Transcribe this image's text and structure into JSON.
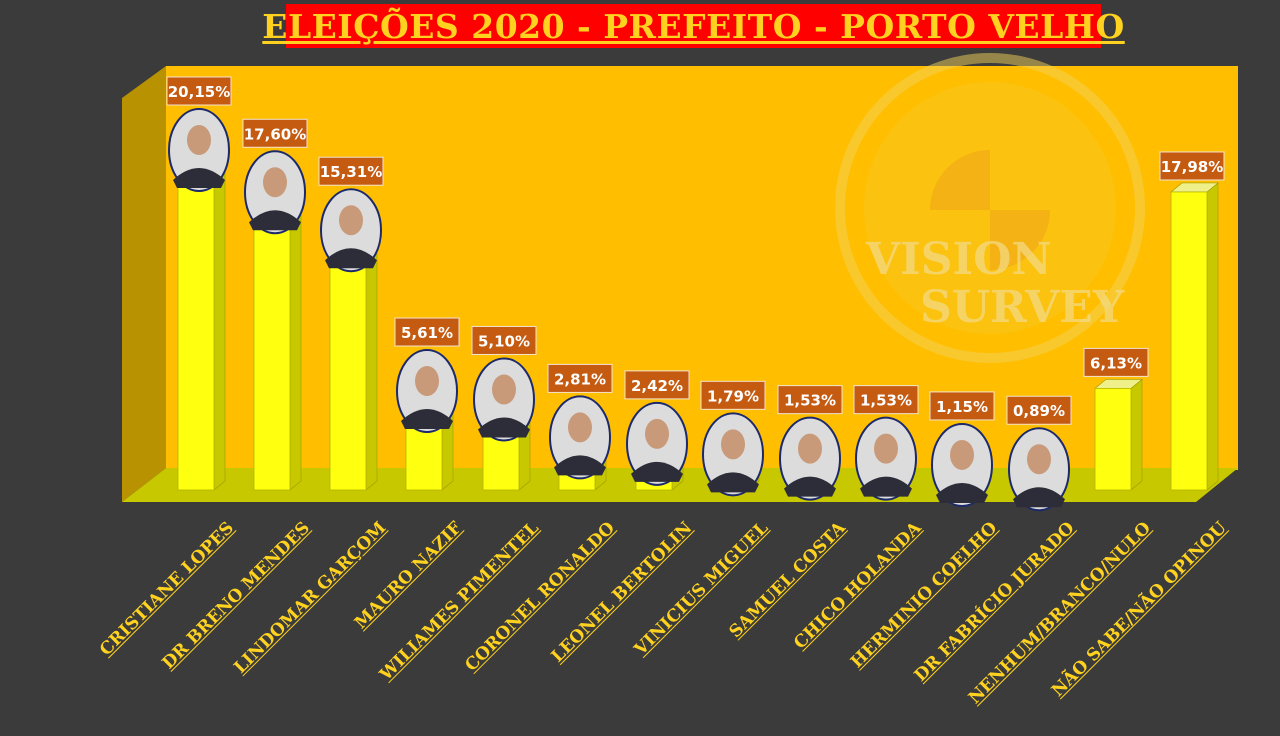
{
  "title": "ELEIÇÕES 2020 - PREFEITO - PORTO VELHO",
  "watermark": {
    "line1": "VISION",
    "line2": "SURVEY"
  },
  "colors": {
    "background": "#3b3b3b",
    "title_box": "#ff0000",
    "title_text": "#ffd21f",
    "wall": "#ffbf00",
    "floor": "#c8c800",
    "bar_front": "#ffff10",
    "bar_side": "#c8c800",
    "label_box": "#c55a11",
    "axis_label": "#ffd21f"
  },
  "chart_data": {
    "type": "bar",
    "title": "ELEIÇÕES 2020 - PREFEITO - PORTO VELHO",
    "unit": "%",
    "ylim": [
      0,
      20.15
    ],
    "categories": [
      "CRISTIANE LOPES",
      "DR BRENO MENDES",
      "LINDOMAR GARÇOM",
      "MAURO NAZIF",
      "WILIAMES PIMENTEL",
      "CORONEL RONALDO",
      "LEONEL BERTOLIN",
      "VINICIUS MIGUEL",
      "SAMUEL COSTA",
      "CHICO HOLANDA",
      "HERMINIO COELHO",
      "DR FABRÍCIO JURADO",
      "NENHUM/BRANCO/NULO",
      "NÃO SABE/NÃO OPINOU"
    ],
    "values": [
      20.15,
      17.6,
      15.31,
      5.61,
      5.1,
      2.81,
      2.42,
      1.79,
      1.53,
      1.53,
      1.15,
      0.89,
      6.13,
      17.98
    ],
    "value_labels": [
      "20,15%",
      "17,60%",
      "15,31%",
      "5,61%",
      "5,10%",
      "2,81%",
      "2,42%",
      "1,79%",
      "1,53%",
      "1,53%",
      "1,15%",
      "0,89%",
      "6,13%",
      "17,98%"
    ],
    "has_photo": [
      true,
      true,
      true,
      true,
      true,
      true,
      true,
      true,
      true,
      true,
      true,
      true,
      false,
      false
    ]
  }
}
